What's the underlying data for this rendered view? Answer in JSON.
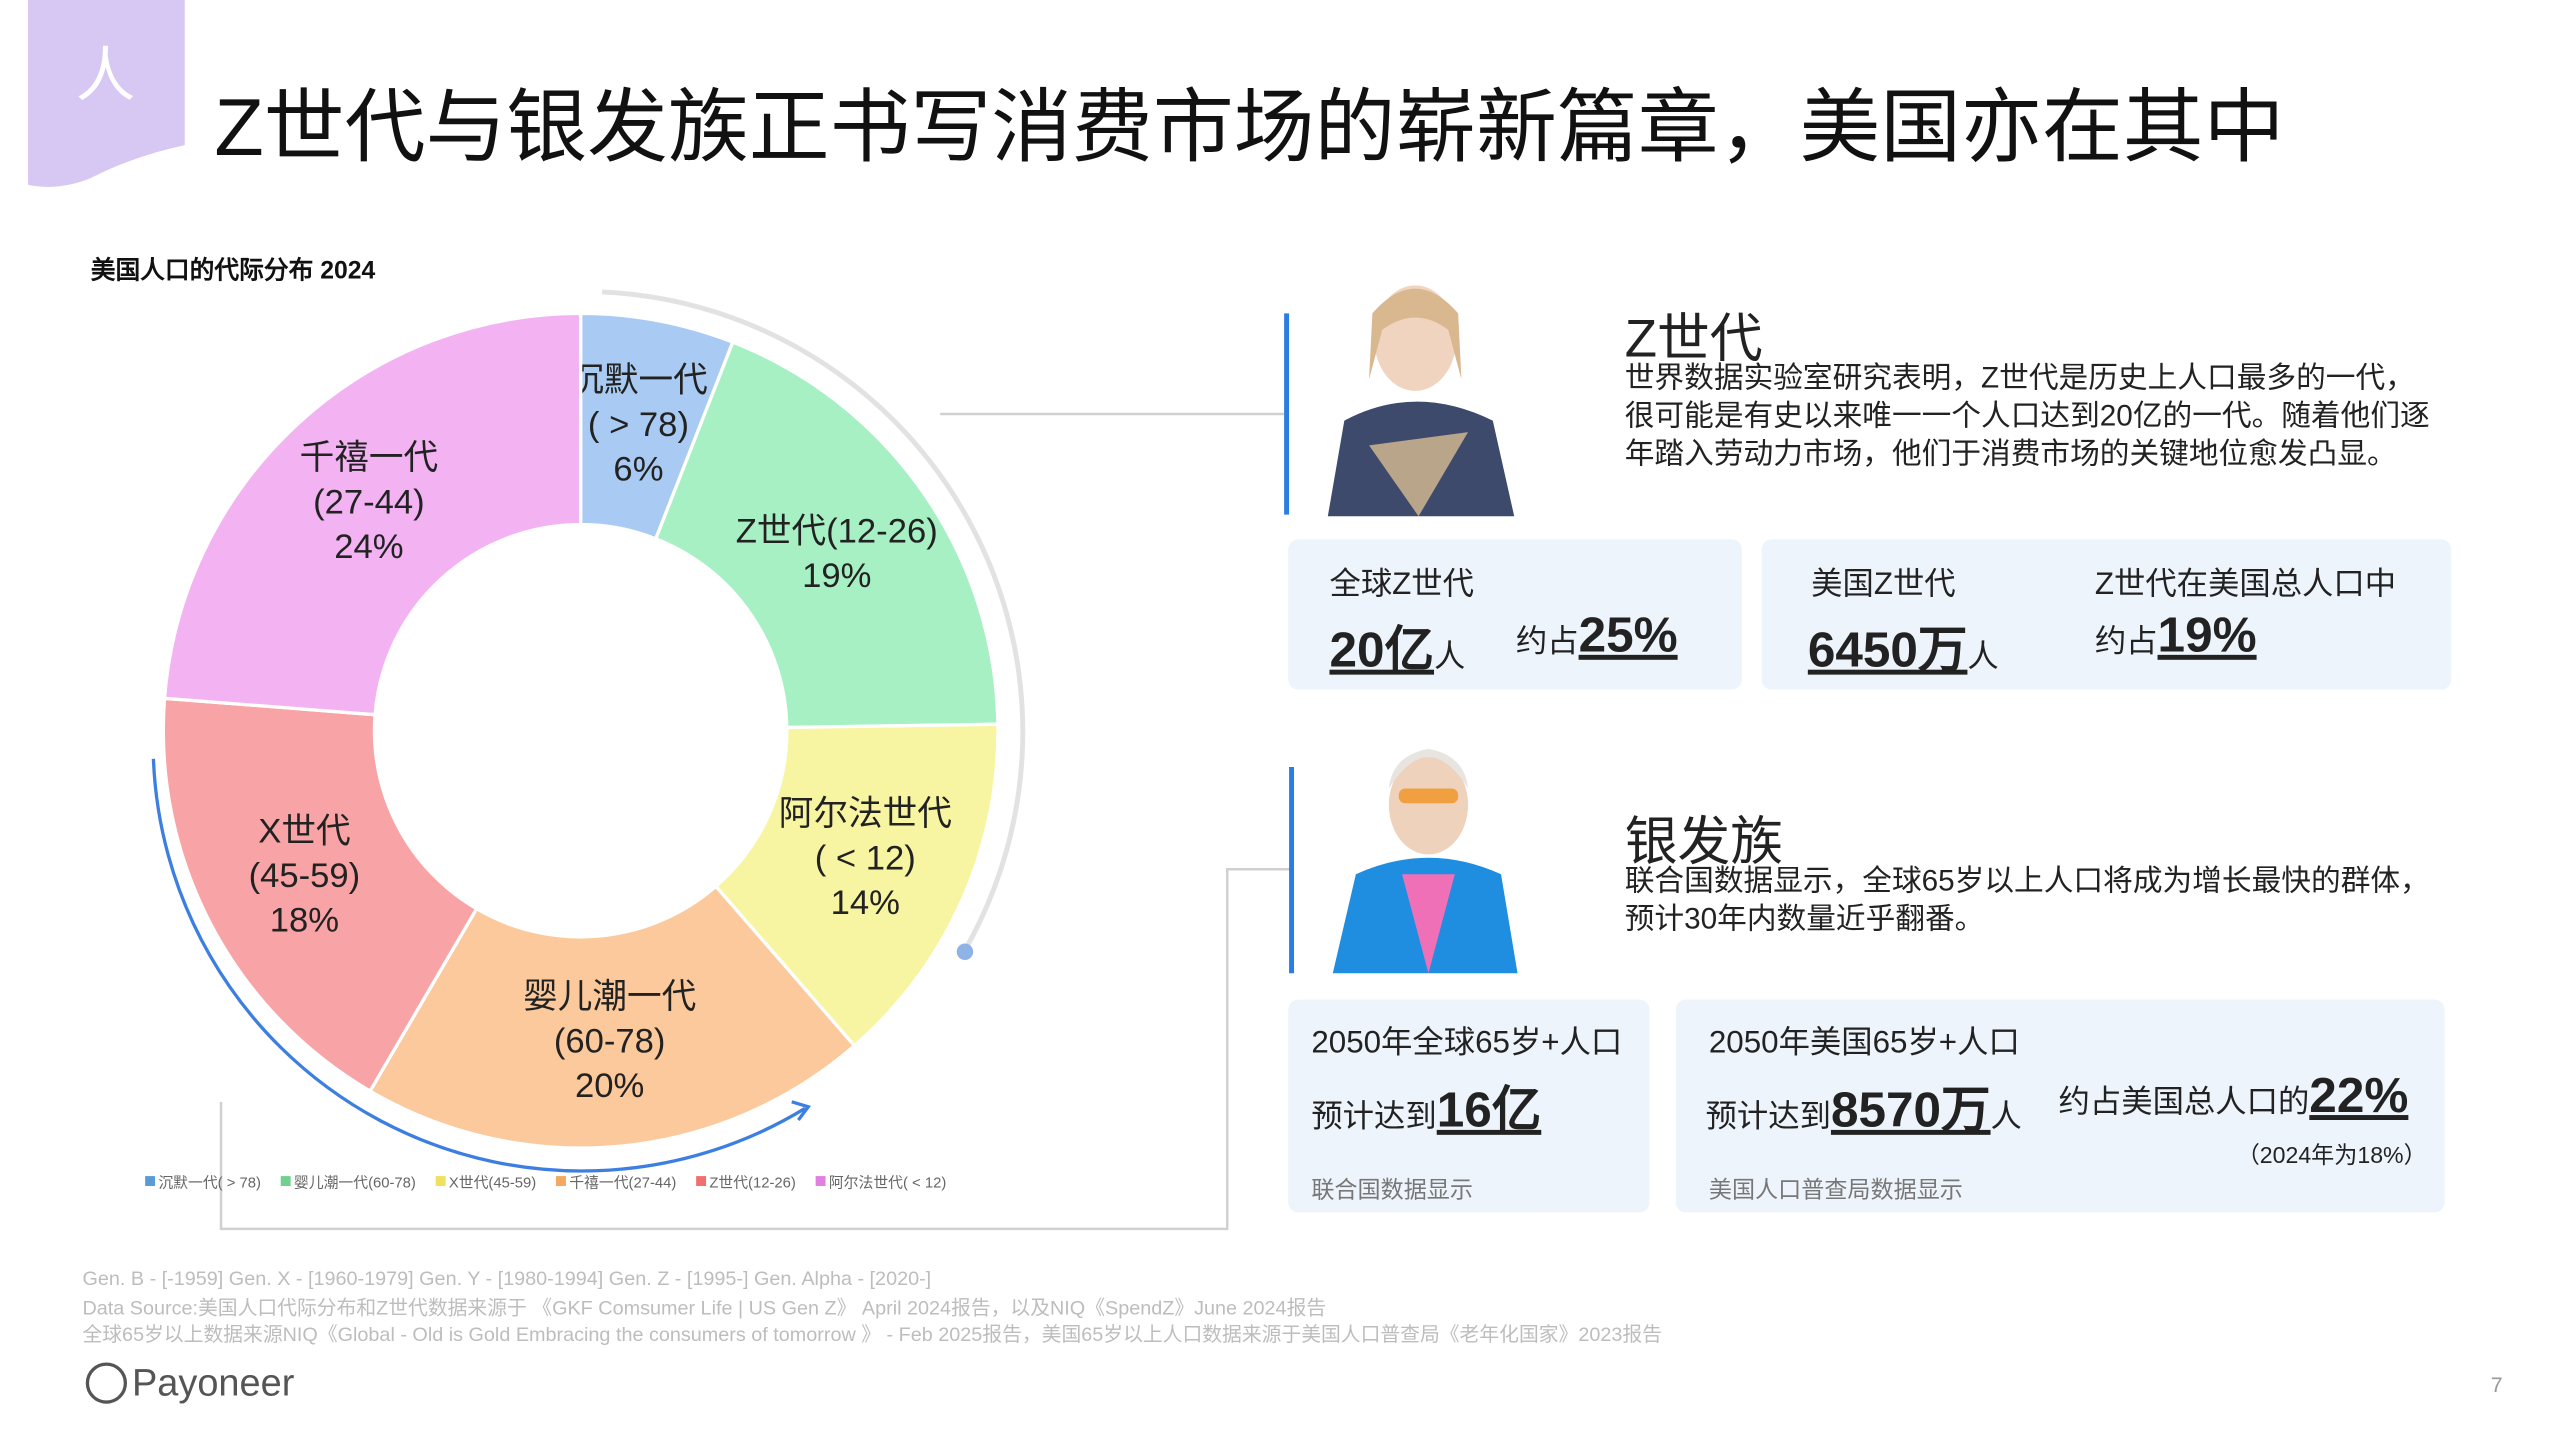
{
  "header": {
    "icon": "人",
    "title": "Z世代与银发族正书写消费市场的崭新篇章，美国亦在其中"
  },
  "chart_data": {
    "type": "donut",
    "title": "美国人口的代际分布 2024",
    "categories": [
      "沉默一代",
      "Z世代(12-26)",
      "阿尔法世代",
      "婴儿潮一代",
      "X世代",
      "千禧一代"
    ],
    "sublabels": [
      "( > 78)",
      null,
      "( < 12)",
      "(60-78)",
      "(45-59)",
      "(27-44)"
    ],
    "values": [
      6,
      19,
      14,
      20,
      18,
      24
    ],
    "value_labels": [
      "6%",
      "19%",
      "14%",
      "20%",
      "18%",
      "24%"
    ],
    "colors": [
      "#a9cbf3",
      "#a6f0c4",
      "#f8f5a2",
      "#fbc99b",
      "#f8a4a6",
      "#f3b2f2"
    ],
    "legend": [
      {
        "name": "沉默一代( > 78)",
        "color": "#5b9bd5"
      },
      {
        "name": "婴儿潮一代(60-78)",
        "color": "#70d090"
      },
      {
        "name": "X世代(45-59)",
        "color": "#f0e060"
      },
      {
        "name": "千禧一代(27-44)",
        "color": "#f4a860"
      },
      {
        "name": "Z世代(12-26)",
        "color": "#f07070"
      },
      {
        "name": "阿尔法世代( < 12)",
        "color": "#e080e0"
      }
    ]
  },
  "genz": {
    "title": "Z世代",
    "text": "世界数据实验室研究表明，Z世代是历史上人口最多的一代，很可能是有史以来唯一一个人口达到20亿的一代。随着他们逐年踏入劳动力市场，他们于消费市场的关键地位愈发凸显。",
    "cards": [
      {
        "label": "全球Z世代",
        "value": "20亿",
        "unit": "人",
        "share_prefix": "约占",
        "share": "25%"
      },
      {
        "label": "美国Z世代",
        "value": "6450万",
        "unit": "人",
        "share_label": "Z世代在美国总人口中",
        "share_prefix": "约占",
        "share": "19%"
      }
    ]
  },
  "silver": {
    "title": "银发族",
    "text": "联合国数据显示，全球65岁以上人口将成为增长最快的群体，预计30年内数量近乎翻番。",
    "cards": [
      {
        "label": "2050年全球65岁+人口",
        "prefix": "预计达到",
        "value": "16亿",
        "source": "联合国数据显示"
      },
      {
        "label": "2050年美国65岁+人口",
        "prefix": "预计达到",
        "value": "8570万",
        "unit": "人",
        "share_prefix": "约占美国总人口的",
        "share": "22%",
        "note": "（2024年为18%）",
        "source": "美国人口普查局数据显示"
      }
    ]
  },
  "footnotes": [
    "Gen. B - [-1959]  Gen. X - [1960-1979] Gen. Y - [1980-1994] Gen. Z - [1995-] Gen. Alpha - [2020-]",
    "Data Source:美国人口代际分布和Z世代数据来源于 《GKF Comsumer Life | US Gen Z》 April 2024报告，以及NIQ《SpendZ》June 2024报告",
    "全球65岁以上数据来源NIQ《Global - Old is Gold Embracing the consumers of tomorrow 》 - Feb 2025报告，美国65岁以上人口数据来源于美国人口普查局《老年化国家》2023报告"
  ],
  "footer": {
    "logo": "Payoneer",
    "page": "7"
  }
}
